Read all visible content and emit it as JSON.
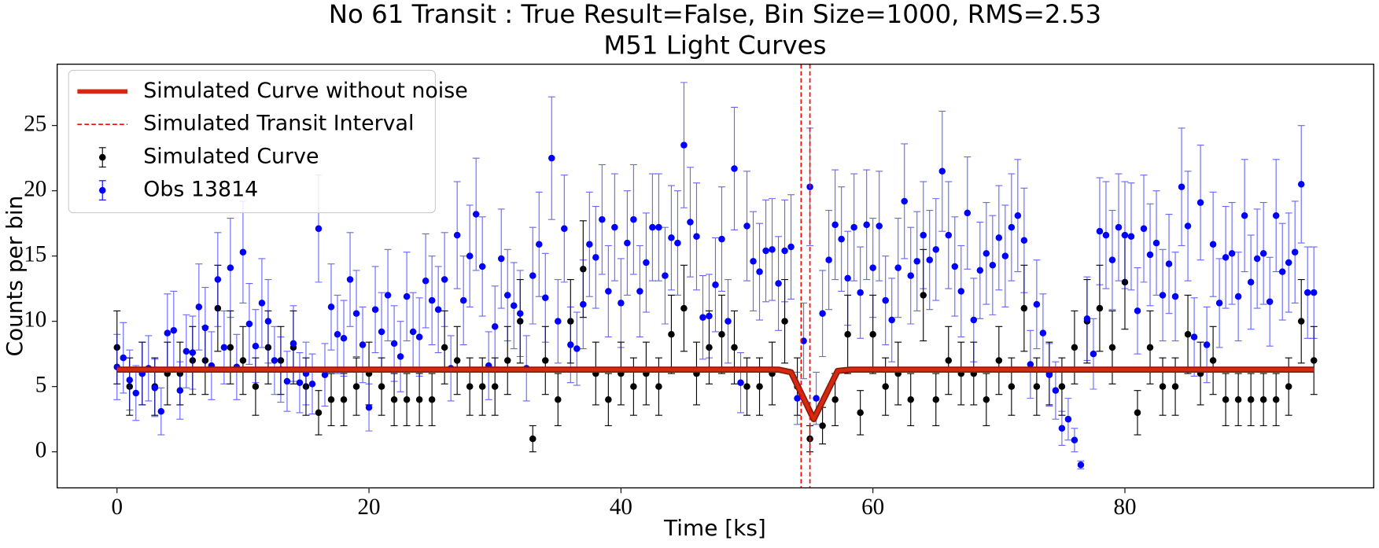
{
  "chart_data": {
    "type": "errorbar",
    "title": "No 61 Transit : True Result=False, Bin Size=1000, RMS=2.53",
    "subtitle": "M51 Light Curves",
    "x_label": "Time [ks]",
    "y_label": "Counts per bin",
    "xlim": [
      -4.75,
      99.75
    ],
    "ylim": [
      -2.76,
      29.7
    ],
    "xticks": [
      0,
      20,
      40,
      60,
      80
    ],
    "yticks": [
      0,
      5,
      10,
      15,
      20,
      25
    ],
    "grid": false,
    "legend": "upper left",
    "series": [
      {
        "name": "Simulated Curve without noise",
        "style": "line",
        "color": "#d42a10",
        "x": [
          0,
          52.5,
          53.5,
          55.3,
          57.2,
          58.2,
          95
        ],
        "values": [
          6.3,
          6.3,
          6.1,
          2.5,
          6.2,
          6.3,
          6.3
        ]
      },
      {
        "name": "Simulated Transit Interval",
        "style": "vline",
        "color": "#ff0000",
        "x": [
          54.3,
          55.0
        ]
      },
      {
        "name": "Simulated Curve",
        "style": "errorbar",
        "color": "#000000",
        "x": [
          0,
          1,
          2,
          3,
          4,
          5,
          6,
          7,
          8,
          9,
          10,
          11,
          12,
          13,
          14,
          15,
          16,
          17,
          18,
          19,
          20,
          21,
          22,
          23,
          24,
          25,
          26,
          27,
          28,
          29,
          30,
          31,
          32,
          33,
          34,
          35,
          36,
          37,
          38,
          39,
          40,
          41,
          42,
          43,
          44,
          45,
          46,
          47,
          48,
          49,
          50,
          51,
          52,
          53,
          54,
          55,
          56,
          57,
          58,
          59,
          60,
          61,
          62,
          63,
          64,
          65,
          66,
          67,
          68,
          69,
          70,
          71,
          72,
          73,
          74,
          75,
          76,
          77,
          78,
          79,
          80,
          81,
          82,
          83,
          84,
          85,
          86,
          87,
          88,
          89,
          90,
          91,
          92,
          93,
          94,
          95
        ],
        "values": [
          8,
          5,
          6,
          5,
          6,
          6,
          7,
          7,
          11,
          8,
          7,
          5,
          8,
          7,
          8,
          5,
          3,
          4,
          4,
          5,
          6,
          5,
          4,
          4,
          4,
          4,
          8,
          7,
          5,
          5,
          5,
          7,
          10,
          1,
          7,
          4,
          10,
          14,
          6,
          4,
          6,
          5,
          6,
          5,
          9,
          11,
          6,
          8,
          9,
          8,
          5,
          5,
          6,
          10,
          5,
          1,
          2,
          4,
          9,
          3,
          9,
          5,
          6,
          4,
          12,
          4,
          7,
          6,
          6,
          4,
          7,
          5,
          11,
          5,
          6,
          5,
          8,
          10,
          11,
          8,
          13,
          3,
          8,
          5,
          5,
          9,
          6,
          7,
          4,
          4,
          4,
          4,
          4,
          5,
          10,
          7
        ],
        "errors": [
          2.8,
          2.2,
          2.4,
          2.2,
          2.4,
          2.4,
          2.6,
          2.6,
          3.3,
          2.8,
          2.6,
          2.2,
          2.8,
          2.6,
          2.8,
          2.2,
          1.7,
          2.0,
          2.0,
          2.2,
          2.4,
          2.2,
          2.0,
          2.0,
          2.0,
          2.0,
          2.8,
          2.6,
          2.2,
          2.2,
          2.2,
          2.6,
          3.2,
          1.0,
          2.6,
          2.0,
          3.2,
          3.7,
          2.4,
          2.0,
          2.4,
          2.2,
          2.4,
          2.2,
          3.0,
          3.3,
          2.4,
          2.8,
          3.0,
          2.8,
          2.2,
          2.2,
          2.4,
          3.2,
          2.2,
          1.0,
          1.4,
          2.0,
          3.0,
          1.7,
          3.0,
          2.2,
          2.4,
          2.0,
          3.5,
          2.0,
          2.6,
          2.4,
          2.4,
          2.0,
          2.6,
          2.2,
          3.3,
          2.2,
          2.4,
          2.2,
          2.8,
          3.2,
          3.3,
          2.8,
          3.6,
          1.7,
          2.8,
          2.2,
          2.2,
          3.0,
          2.4,
          2.6,
          2.0,
          2.0,
          2.0,
          2.0,
          2.0,
          2.2,
          3.2,
          2.6
        ]
      },
      {
        "name": "Obs 13814",
        "style": "errorbar",
        "color": "#0000ff",
        "x": [
          0,
          0.5,
          1,
          1.5,
          2,
          2.5,
          3,
          3.5,
          4,
          4.5,
          5,
          5.5,
          6,
          6.5,
          7,
          7.5,
          8,
          8.5,
          9,
          9.5,
          10,
          10.5,
          11,
          11.5,
          12,
          12.5,
          13,
          13.5,
          14,
          14.5,
          15,
          15.5,
          16,
          16.5,
          17,
          17.5,
          18,
          18.5,
          19,
          19.5,
          20,
          20.5,
          21,
          21.5,
          22,
          22.5,
          23,
          23.5,
          24,
          24.5,
          25,
          25.5,
          26,
          26.5,
          27,
          27.5,
          28,
          28.5,
          29,
          29.5,
          30,
          30.5,
          31,
          31.5,
          32,
          32.5,
          33,
          33.5,
          34,
          34.5,
          35,
          35.5,
          36,
          36.5,
          37,
          37.5,
          38,
          38.5,
          39,
          39.5,
          40,
          40.5,
          41,
          41.5,
          42,
          42.5,
          43,
          43.5,
          44,
          44.5,
          45,
          45.5,
          46,
          46.5,
          47,
          47.5,
          48,
          48.5,
          49,
          49.5,
          50,
          50.5,
          51,
          51.5,
          52,
          52.5,
          53,
          53.5,
          54,
          54.5,
          55,
          55.5,
          56,
          56.5,
          57,
          57.5,
          58,
          58.5,
          59,
          59.5,
          60,
          60.5,
          61,
          61.5,
          62,
          62.5,
          63,
          63.5,
          64,
          64.5,
          65,
          65.5,
          66,
          66.5,
          67,
          67.5,
          68,
          68.5,
          69,
          69.5,
          70,
          70.5,
          71,
          71.5,
          72,
          72.5,
          73,
          73.5,
          74,
          74.5,
          75,
          75.5,
          76,
          76.5,
          77,
          77.5,
          78,
          78.5,
          79,
          79.5,
          80,
          80.5,
          81,
          81.5,
          82,
          82.5,
          83,
          83.5,
          84,
          84.5,
          85,
          85.5,
          86,
          86.5,
          87,
          87.5,
          88,
          88.5,
          89,
          89.5,
          90,
          90.5,
          91,
          91.5,
          92,
          92.5,
          93,
          93.5,
          94,
          94.5,
          95
        ],
        "values": [
          6.5,
          7.2,
          5.5,
          4.5,
          6.0,
          6.4,
          4.9,
          3.1,
          9.1,
          9.3,
          4.7,
          7.7,
          7.6,
          11.1,
          9.5,
          6.6,
          13.2,
          8.0,
          14.1,
          6.5,
          15.3,
          9.8,
          8.1,
          11.4,
          10.0,
          7.0,
          6.3,
          5.4,
          8.3,
          5.3,
          6.0,
          5.2,
          17.1,
          5.9,
          11.1,
          9.0,
          8.7,
          13.2,
          10.6,
          8.2,
          3.4,
          10.9,
          9.2,
          12.0,
          8.3,
          7.3,
          11.9,
          9.2,
          8.8,
          13.1,
          11.6,
          10.9,
          13.2,
          6.4,
          16.6,
          11.6,
          15.0,
          18.2,
          14.2,
          6.6,
          9.6,
          14.8,
          12.0,
          11.2,
          10.6,
          6.4,
          13.5,
          15.9,
          11.8,
          22.5,
          10.0,
          17.1,
          8.2,
          7.9,
          11.3,
          15.9,
          14.9,
          17.8,
          12.3,
          17.2,
          11.4,
          16.0,
          17.8,
          12.3,
          14.5,
          17.2,
          17.2,
          13.5,
          16.4,
          16.0,
          23.5,
          17.6,
          16.5,
          10.3,
          10.4,
          12.8,
          16.3,
          10.0,
          21.7,
          5.3,
          17.3,
          14.6,
          13.8,
          15.4,
          15.5,
          12.9,
          15.4,
          15.7,
          4.1,
          8.5,
          20.3,
          4.1,
          10.6,
          14.7,
          17.4,
          16.3,
          13.3,
          17.2,
          12.2,
          17.4,
          14.1,
          17.3,
          11.6,
          10.1,
          14.1,
          19.2,
          13.5,
          14.6,
          16.6,
          14.7,
          15.5,
          21.5,
          16.6,
          14.2,
          12.3,
          18.3,
          10.1,
          13.9,
          15.2,
          14.3,
          16.4,
          15.0,
          17.2,
          18.1,
          16.2,
          6.7,
          11.3,
          9.1,
          5.9,
          4.7,
          1.8,
          2.5,
          0.9,
          -1.0,
          10.2,
          7.5,
          16.9,
          16.6,
          14.7,
          17.2,
          16.6,
          16.5,
          10.8,
          17.1,
          15.1,
          16.0,
          12.0,
          14.4,
          11.9,
          20.3,
          17.3,
          8.8,
          19.1,
          8.2,
          15.9,
          11.4,
          14.9,
          15.2,
          11.9,
          18.1,
          13.0,
          14.8,
          15.2,
          11.5,
          18.1,
          13.8,
          14.5,
          15.3,
          20.5,
          12.2,
          12.2
        ],
        "errors": [
          2.5,
          2.7,
          2.3,
          2.1,
          2.4,
          2.5,
          2.2,
          1.8,
          3.0,
          3.0,
          2.2,
          2.8,
          2.8,
          3.3,
          3.1,
          2.6,
          3.6,
          2.8,
          3.8,
          2.5,
          3.9,
          3.1,
          2.8,
          3.4,
          3.2,
          2.6,
          2.5,
          2.3,
          2.9,
          2.3,
          2.4,
          2.3,
          4.1,
          2.4,
          3.3,
          3.0,
          2.9,
          3.6,
          3.3,
          2.9,
          1.8,
          3.3,
          3.0,
          3.5,
          2.9,
          2.7,
          3.4,
          3.0,
          3.0,
          3.6,
          3.4,
          3.3,
          3.6,
          2.5,
          4.1,
          3.4,
          3.9,
          4.3,
          3.8,
          2.6,
          3.1,
          3.8,
          3.5,
          3.3,
          3.3,
          2.5,
          3.7,
          4.0,
          3.4,
          4.7,
          3.2,
          4.1,
          2.9,
          2.8,
          3.4,
          4.0,
          3.9,
          4.2,
          3.5,
          4.1,
          3.4,
          4.0,
          4.2,
          3.5,
          3.8,
          4.1,
          4.1,
          3.7,
          4.0,
          4.0,
          4.8,
          4.2,
          4.1,
          3.2,
          3.2,
          3.6,
          4.0,
          3.2,
          4.7,
          2.3,
          4.2,
          3.8,
          3.7,
          3.9,
          3.9,
          3.6,
          3.9,
          4.0,
          2.0,
          2.9,
          4.5,
          2.0,
          3.3,
          3.8,
          4.2,
          4.0,
          3.6,
          4.1,
          3.5,
          4.2,
          3.8,
          4.2,
          3.4,
          3.2,
          3.8,
          4.4,
          3.7,
          3.8,
          4.1,
          3.8,
          3.9,
          4.6,
          4.1,
          3.8,
          3.5,
          4.3,
          3.2,
          3.7,
          3.9,
          3.8,
          4.0,
          3.9,
          4.1,
          4.3,
          4.0,
          2.6,
          3.4,
          3.0,
          2.4,
          2.2,
          1.3,
          1.6,
          0.9,
          0.3,
          3.2,
          2.7,
          4.1,
          4.1,
          3.8,
          4.1,
          4.1,
          4.1,
          3.3,
          4.1,
          3.9,
          4.0,
          3.5,
          3.8,
          3.4,
          4.5,
          4.2,
          3.0,
          4.4,
          2.9,
          4.0,
          3.4,
          3.9,
          3.9,
          3.4,
          4.3,
          3.6,
          3.8,
          3.9,
          3.4,
          4.3,
          3.7,
          3.8,
          3.9,
          4.5,
          3.5,
          3.5
        ]
      }
    ]
  }
}
